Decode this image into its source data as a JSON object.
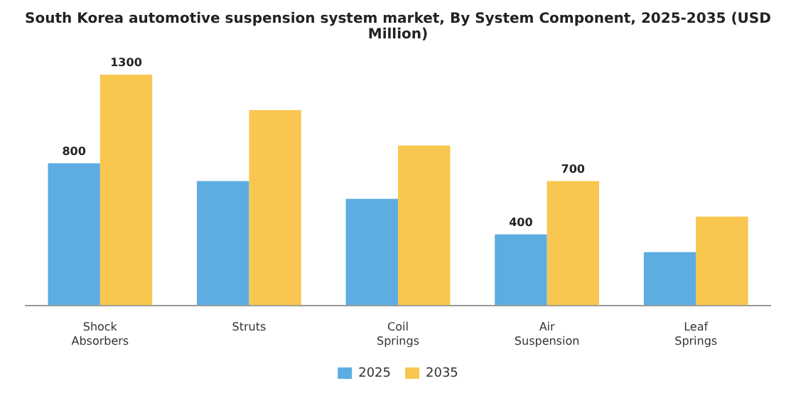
{
  "chart_data": {
    "type": "bar",
    "title": "South Korea automotive suspension system market, By System Component, 2025-2035 (USD Million)",
    "categories": [
      "Shock Absorbers",
      "Struts",
      "Coil Springs",
      "Air Suspension",
      "Leaf Springs"
    ],
    "series": [
      {
        "name": "2025",
        "color": "#5dade2",
        "values": [
          800,
          700,
          600,
          400,
          300
        ],
        "value_labels": [
          "800",
          null,
          null,
          "400",
          null
        ]
      },
      {
        "name": "2035",
        "color": "#f9c74f",
        "values": [
          1300,
          1100,
          900,
          700,
          500
        ],
        "value_labels": [
          "1300",
          null,
          null,
          "700",
          null
        ]
      }
    ],
    "legend": "bottom",
    "grid": false
  }
}
